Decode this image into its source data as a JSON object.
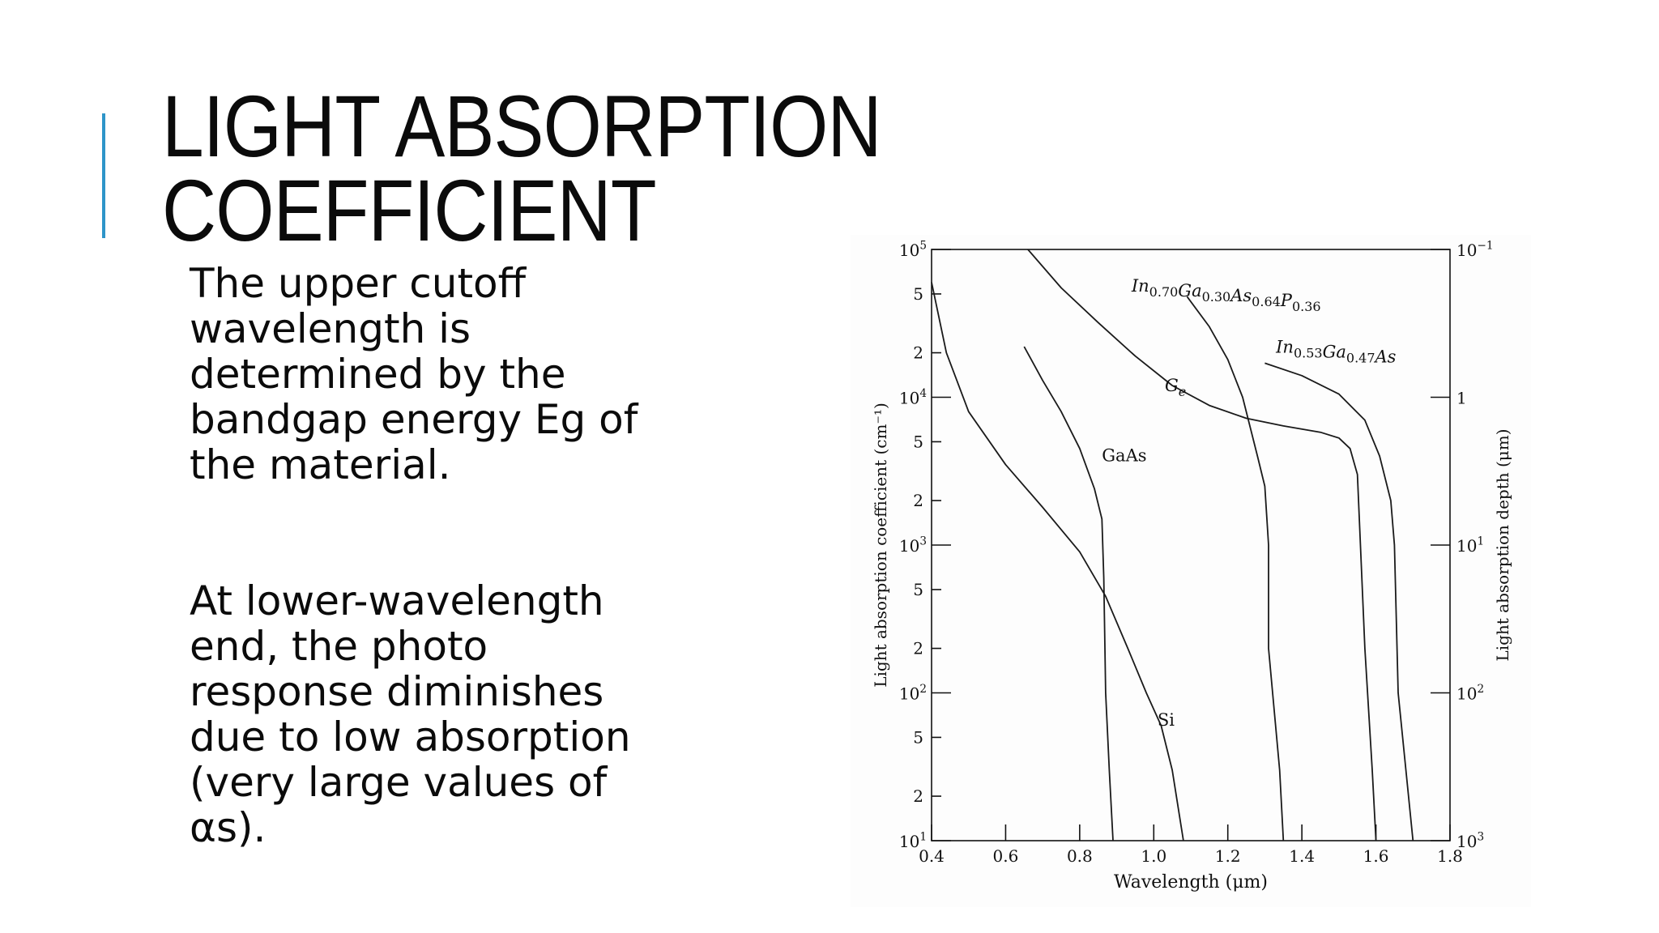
{
  "slide": {
    "title_line1": "LIGHT ABSORPTION",
    "title_line2": "COEFFICIENT",
    "paragraph1": "The upper cutoff wavelength is determined by the bandgap energy Eg of the material.",
    "paragraph2": "At lower-wavelength end, the photo response diminishes due to low absorption (very large values of αs).",
    "accent_color": "#2e95c9"
  },
  "chart_data": {
    "type": "line",
    "title": "",
    "xlabel": "Wavelength (μm)",
    "ylabel": "Light absorption coefficient (cm⁻¹)",
    "y2label": "Light absorption depth (μm)",
    "xlim": [
      0.4,
      1.8
    ],
    "ylim": [
      10,
      100000
    ],
    "yscale": "log",
    "x_ticks": [
      "0.4",
      "0.6",
      "0.8",
      "1.0",
      "1.2",
      "1.4",
      "1.6",
      "1.8"
    ],
    "y_decade_labels": [
      {
        "base": "10",
        "exp": "1",
        "value": 10
      },
      {
        "base": "10",
        "exp": "2",
        "value": 100
      },
      {
        "base": "10",
        "exp": "3",
        "value": 1000
      },
      {
        "base": "10",
        "exp": "4",
        "value": 10000
      },
      {
        "base": "10",
        "exp": "5",
        "value": 100000
      }
    ],
    "y_minor_labels": [
      {
        "label": "2",
        "value": 20
      },
      {
        "label": "5",
        "value": 50
      },
      {
        "label": "2",
        "value": 200
      },
      {
        "label": "5",
        "value": 500
      },
      {
        "label": "2",
        "value": 2000
      },
      {
        "label": "5",
        "value": 5000
      },
      {
        "label": "2",
        "value": 20000
      },
      {
        "label": "5",
        "value": 50000
      }
    ],
    "y2_ticks": [
      {
        "base": "10",
        "exp": "−1",
        "alpha": 100000
      },
      {
        "base": "1",
        "exp": "",
        "alpha": 10000
      },
      {
        "base": "10",
        "exp": "1",
        "alpha": 1000
      },
      {
        "base": "10",
        "exp": "2",
        "alpha": 100
      },
      {
        "base": "10",
        "exp": "3",
        "alpha": 10
      }
    ],
    "grid": false,
    "legend": "none",
    "series": [
      {
        "name": "Si",
        "label_at": [
          1.01,
          60
        ],
        "points": [
          [
            0.4,
            60000
          ],
          [
            0.44,
            20000
          ],
          [
            0.5,
            8000
          ],
          [
            0.6,
            3500
          ],
          [
            0.7,
            1800
          ],
          [
            0.8,
            900
          ],
          [
            0.87,
            450
          ],
          [
            0.93,
            200
          ],
          [
            0.98,
            100
          ],
          [
            1.02,
            60
          ],
          [
            1.05,
            30
          ],
          [
            1.08,
            10
          ]
        ]
      },
      {
        "name": "GaAs",
        "label_at": [
          0.86,
          3700
        ],
        "points": [
          [
            0.65,
            22000
          ],
          [
            0.7,
            13000
          ],
          [
            0.75,
            8000
          ],
          [
            0.8,
            4500
          ],
          [
            0.84,
            2400
          ],
          [
            0.86,
            1500
          ],
          [
            0.865,
            600
          ],
          [
            0.87,
            100
          ],
          [
            0.88,
            30
          ],
          [
            0.89,
            10
          ]
        ]
      },
      {
        "name": "Ge",
        "label_at": [
          1.03,
          11000
        ],
        "points": [
          [
            0.66,
            100000
          ],
          [
            0.75,
            55000
          ],
          [
            0.85,
            32000
          ],
          [
            0.95,
            19000
          ],
          [
            1.05,
            12000
          ],
          [
            1.15,
            8800
          ],
          [
            1.25,
            7200
          ],
          [
            1.35,
            6400
          ],
          [
            1.45,
            5800
          ],
          [
            1.5,
            5300
          ],
          [
            1.53,
            4500
          ],
          [
            1.55,
            3000
          ],
          [
            1.57,
            200
          ],
          [
            1.59,
            30
          ],
          [
            1.6,
            10
          ]
        ]
      },
      {
        "name": "In0.70Ga0.30As0.64P0.36",
        "label_at": [
          0.94,
          52000
        ],
        "points": [
          [
            1.09,
            48000
          ],
          [
            1.15,
            30000
          ],
          [
            1.2,
            18000
          ],
          [
            1.24,
            10000
          ],
          [
            1.28,
            4000
          ],
          [
            1.3,
            2500
          ],
          [
            1.31,
            1000
          ],
          [
            1.31,
            200
          ],
          [
            1.34,
            30
          ],
          [
            1.35,
            10
          ]
        ]
      },
      {
        "name": "In0.53Ga0.47As",
        "label_at": [
          1.33,
          20000
        ],
        "points": [
          [
            1.3,
            17000
          ],
          [
            1.4,
            14000
          ],
          [
            1.5,
            10500
          ],
          [
            1.57,
            7000
          ],
          [
            1.61,
            4000
          ],
          [
            1.64,
            2000
          ],
          [
            1.65,
            1000
          ],
          [
            1.66,
            100
          ],
          [
            1.7,
            10
          ]
        ]
      }
    ]
  }
}
